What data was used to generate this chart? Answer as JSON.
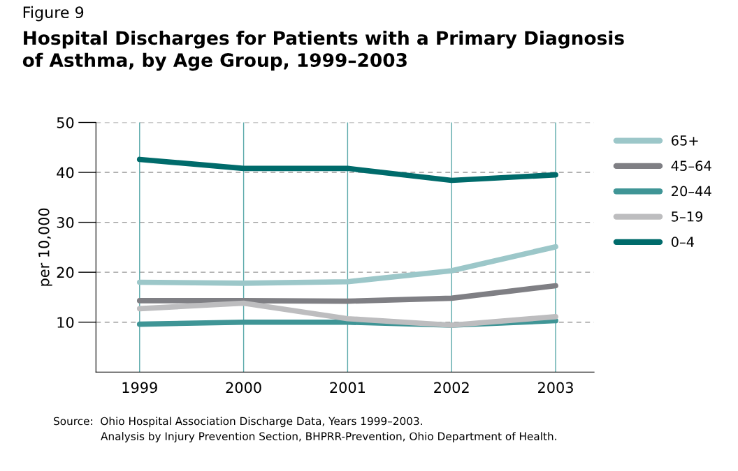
{
  "chart_data": {
    "type": "line",
    "title": "Hospital Discharges for Patients with a Primary Diagnosis\nof Asthma, by Age Group, 1999–2003",
    "ylabel": "per 10,000",
    "annotations": [
      "Figure 9",
      "Source:  Ohio Hospital Association Discharge Data, Years 1999–2003.\n              Analysis by Injury Prevention Section, BHPRR-Prevention, Ohio Department of Health."
    ],
    "categories": [
      "1999",
      "2000",
      "2001",
      "2002",
      "2003"
    ],
    "series": [
      {
        "name": "65+",
        "color": "#9cc7c9",
        "values": [
          18.0,
          17.8,
          18.1,
          20.3,
          25.1
        ]
      },
      {
        "name": "45–64",
        "color": "#7f7f84",
        "values": [
          14.3,
          14.3,
          14.2,
          14.8,
          17.3
        ]
      },
      {
        "name": "20–44",
        "color": "#3f9596",
        "values": [
          9.6,
          10.0,
          10.0,
          9.4,
          10.3
        ]
      },
      {
        "name": "5–19",
        "color": "#bdbdbf",
        "values": [
          12.7,
          13.8,
          10.7,
          9.4,
          11.1
        ]
      },
      {
        "name": "0–4",
        "color": "#006b6b",
        "values": [
          42.6,
          40.8,
          40.8,
          38.4,
          39.5
        ]
      }
    ],
    "ylim": [
      0,
      50
    ],
    "yticks": [
      10,
      20,
      30,
      40,
      50
    ],
    "grid": true,
    "legend": "right",
    "marker": "none",
    "line_style": "solid"
  }
}
